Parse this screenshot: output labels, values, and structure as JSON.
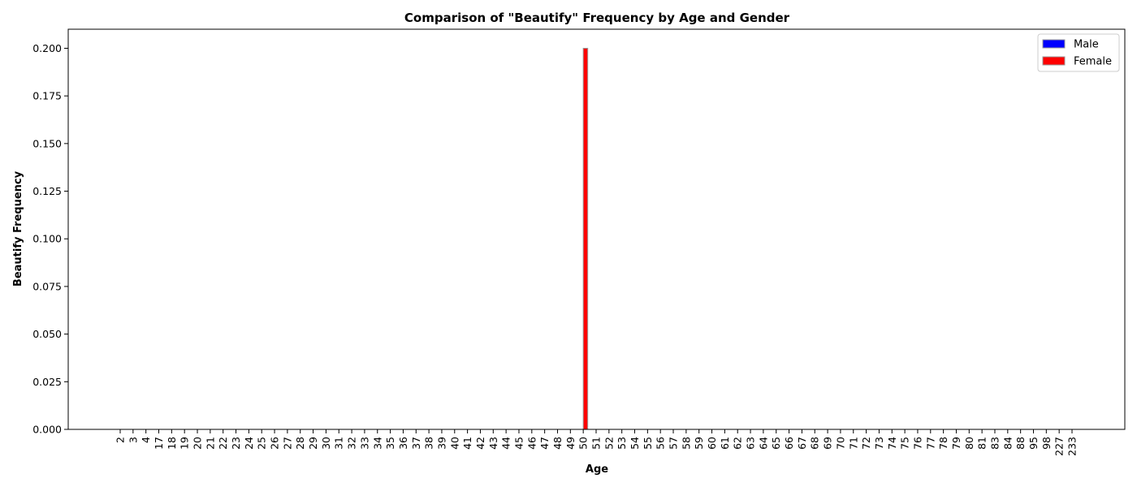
{
  "chart_data": {
    "type": "bar",
    "title": "Comparison of \"Beautify\" Frequency by Age and Gender",
    "xlabel": "Age",
    "ylabel": "Beautify Frequency",
    "ylim": [
      0,
      0.21
    ],
    "yticks": [
      "0.000",
      "0.025",
      "0.050",
      "0.075",
      "0.100",
      "0.125",
      "0.150",
      "0.175",
      "0.200"
    ],
    "categories": [
      "2",
      "3",
      "4",
      "17",
      "18",
      "19",
      "20",
      "21",
      "22",
      "23",
      "24",
      "25",
      "26",
      "27",
      "28",
      "29",
      "30",
      "31",
      "32",
      "33",
      "34",
      "35",
      "36",
      "37",
      "38",
      "39",
      "40",
      "41",
      "42",
      "43",
      "44",
      "45",
      "46",
      "47",
      "48",
      "49",
      "50",
      "51",
      "52",
      "53",
      "54",
      "55",
      "56",
      "57",
      "58",
      "59",
      "60",
      "61",
      "62",
      "63",
      "64",
      "65",
      "66",
      "67",
      "68",
      "69",
      "70",
      "71",
      "72",
      "73",
      "74",
      "75",
      "76",
      "77",
      "78",
      "79",
      "80",
      "81",
      "83",
      "84",
      "88",
      "95",
      "98",
      "227",
      "233"
    ],
    "series": [
      {
        "name": "Male",
        "color": "#0000ff",
        "values": [
          0,
          0,
          0,
          0,
          0,
          0,
          0,
          0,
          0,
          0,
          0,
          0,
          0,
          0,
          0,
          0,
          0,
          0,
          0,
          0,
          0,
          0,
          0,
          0,
          0,
          0,
          0,
          0,
          0,
          0,
          0,
          0,
          0,
          0,
          0,
          0,
          0,
          0,
          0,
          0,
          0,
          0,
          0,
          0,
          0,
          0,
          0,
          0,
          0,
          0,
          0,
          0,
          0,
          0,
          0,
          0,
          0,
          0,
          0,
          0,
          0,
          0,
          0,
          0,
          0,
          0,
          0,
          0,
          0,
          0,
          0,
          0,
          0,
          0,
          0
        ]
      },
      {
        "name": "Female",
        "color": "#ff0000",
        "values": [
          0,
          0,
          0,
          0,
          0,
          0,
          0,
          0,
          0,
          0,
          0,
          0,
          0,
          0,
          0,
          0,
          0,
          0,
          0,
          0,
          0,
          0,
          0,
          0,
          0,
          0,
          0,
          0,
          0,
          0,
          0,
          0,
          0,
          0,
          0,
          0,
          0.2,
          0,
          0,
          0,
          0,
          0,
          0,
          0,
          0,
          0,
          0,
          0,
          0,
          0,
          0,
          0,
          0,
          0,
          0,
          0,
          0,
          0,
          0,
          0,
          0,
          0,
          0,
          0,
          0,
          0,
          0,
          0,
          0,
          0,
          0,
          0,
          0,
          0,
          0
        ]
      }
    ],
    "legend": "top-right",
    "grid": false
  }
}
